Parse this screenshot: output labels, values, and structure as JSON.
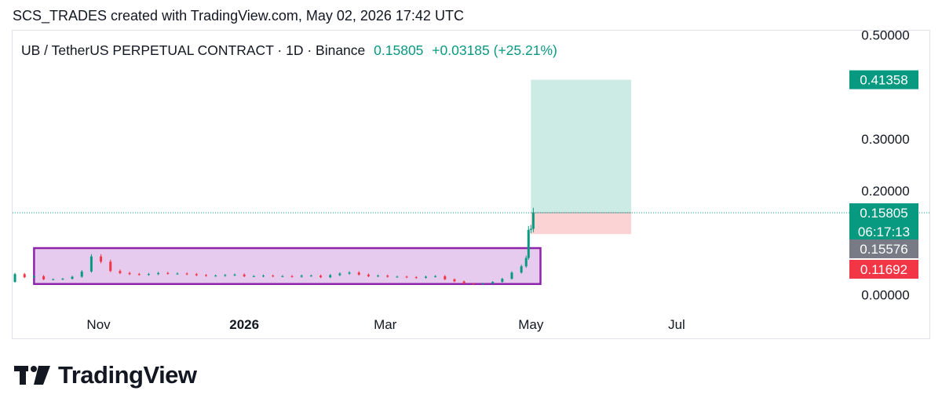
{
  "header": {
    "caption": "SCS_TRADES created with TradingView.com, May 02, 2026 17:42 UTC"
  },
  "legend": {
    "symbol": "UB / TetherUS PERPETUAL CONTRACT · 1D · Binance",
    "last_price": "0.15805",
    "change": "+0.03185 (+25.21%)"
  },
  "footer": {
    "brand": "TradingView"
  },
  "colors": {
    "up": "#089981",
    "down": "#f23645",
    "gray_tag": "#787b86",
    "box_fill": "#e7cbef",
    "box_stroke": "#8e24aa",
    "target_fill": "#cdebe5",
    "stop_fill": "#fbd3d5",
    "price_line": "#089981"
  },
  "chart_data": {
    "type": "candlestick",
    "title": "UB / TetherUS PERPETUAL CONTRACT",
    "interval": "1D",
    "exchange": "Binance",
    "y_ticks": [
      "0.00000",
      "0.20000",
      "0.30000",
      "0.50000"
    ],
    "y_tick_values": [
      0.0,
      0.2,
      0.3,
      0.5
    ],
    "x_labels": [
      {
        "label": "Nov",
        "date": "2025-11-01",
        "bold": false
      },
      {
        "label": "2026",
        "date": "2026-01-01",
        "bold": true
      },
      {
        "label": "Mar",
        "date": "2026-03-01",
        "bold": false
      },
      {
        "label": "May",
        "date": "2026-05-01",
        "bold": false
      },
      {
        "label": "Jul",
        "date": "2026-07-01",
        "bold": false
      }
    ],
    "x_range": [
      "2025-09-26",
      "2026-09-10"
    ],
    "y_range": [
      -0.008,
      0.508
    ],
    "price_tags": [
      {
        "value": 0.41358,
        "label": "0.41358",
        "color": "#089981"
      },
      {
        "value": 0.15805,
        "label": "0.15805",
        "sublabel": "06:17:13",
        "color": "#089981"
      },
      {
        "value": 0.15576,
        "label": "0.15576",
        "color": "#787b86"
      },
      {
        "value": 0.11692,
        "label": "0.11692",
        "color": "#f23645"
      }
    ],
    "last_price": 0.15805,
    "accumulation_box": {
      "start": "2025-10-05",
      "end": "2026-05-05",
      "low": 0.021,
      "high": 0.09
    },
    "long_position": {
      "start": "2026-05-01",
      "end": "2026-06-12",
      "entry": 0.15805,
      "target": 0.41358,
      "stop": 0.11692
    },
    "candles": [
      {
        "date": "2025-09-23",
        "close": 0.025
      },
      {
        "date": "2025-09-27",
        "close": 0.04
      },
      {
        "date": "2025-10-01",
        "close": 0.034
      },
      {
        "date": "2025-10-05",
        "close": 0.036
      },
      {
        "date": "2025-10-09",
        "close": 0.03
      },
      {
        "date": "2025-10-13",
        "close": 0.03
      },
      {
        "date": "2025-10-17",
        "close": 0.031
      },
      {
        "date": "2025-10-21",
        "close": 0.035
      },
      {
        "date": "2025-10-25",
        "close": 0.045
      },
      {
        "date": "2025-10-29",
        "close": 0.074
      },
      {
        "date": "2025-11-02",
        "close": 0.064
      },
      {
        "date": "2025-11-06",
        "close": 0.046
      },
      {
        "date": "2025-11-10",
        "close": 0.042
      },
      {
        "date": "2025-11-14",
        "close": 0.04
      },
      {
        "date": "2025-11-18",
        "close": 0.039
      },
      {
        "date": "2025-11-22",
        "close": 0.04
      },
      {
        "date": "2025-11-26",
        "close": 0.042
      },
      {
        "date": "2025-11-30",
        "close": 0.041
      },
      {
        "date": "2025-12-04",
        "close": 0.041
      },
      {
        "date": "2025-12-08",
        "close": 0.04
      },
      {
        "date": "2025-12-12",
        "close": 0.038
      },
      {
        "date": "2025-12-16",
        "close": 0.037
      },
      {
        "date": "2025-12-20",
        "close": 0.037
      },
      {
        "date": "2025-12-24",
        "close": 0.038
      },
      {
        "date": "2025-12-28",
        "close": 0.039
      },
      {
        "date": "2026-01-01",
        "close": 0.036
      },
      {
        "date": "2026-01-05",
        "close": 0.036
      },
      {
        "date": "2026-01-09",
        "close": 0.037
      },
      {
        "date": "2026-01-13",
        "close": 0.036
      },
      {
        "date": "2026-01-17",
        "close": 0.036
      },
      {
        "date": "2026-01-21",
        "close": 0.035
      },
      {
        "date": "2026-01-25",
        "close": 0.037
      },
      {
        "date": "2026-01-29",
        "close": 0.037
      },
      {
        "date": "2026-02-02",
        "close": 0.034
      },
      {
        "date": "2026-02-06",
        "close": 0.038
      },
      {
        "date": "2026-02-10",
        "close": 0.041
      },
      {
        "date": "2026-02-14",
        "close": 0.043
      },
      {
        "date": "2026-02-18",
        "close": 0.039
      },
      {
        "date": "2026-02-22",
        "close": 0.036
      },
      {
        "date": "2026-02-26",
        "close": 0.037
      },
      {
        "date": "2026-03-02",
        "close": 0.035
      },
      {
        "date": "2026-03-06",
        "close": 0.035
      },
      {
        "date": "2026-03-10",
        "close": 0.034
      },
      {
        "date": "2026-03-14",
        "close": 0.033
      },
      {
        "date": "2026-03-18",
        "close": 0.035
      },
      {
        "date": "2026-03-22",
        "close": 0.036
      },
      {
        "date": "2026-03-26",
        "close": 0.03
      },
      {
        "date": "2026-03-30",
        "close": 0.026
      },
      {
        "date": "2026-04-03",
        "close": 0.022
      },
      {
        "date": "2026-04-07",
        "close": 0.021
      },
      {
        "date": "2026-04-11",
        "close": 0.022
      },
      {
        "date": "2026-04-15",
        "close": 0.025
      },
      {
        "date": "2026-04-19",
        "close": 0.031
      },
      {
        "date": "2026-04-23",
        "close": 0.043
      },
      {
        "date": "2026-04-27",
        "close": 0.055
      },
      {
        "date": "2026-04-29",
        "close": 0.071
      },
      {
        "date": "2026-04-30",
        "close": 0.125
      },
      {
        "date": "2026-05-01",
        "close": 0.127
      },
      {
        "date": "2026-05-02",
        "close": 0.15805
      }
    ]
  }
}
